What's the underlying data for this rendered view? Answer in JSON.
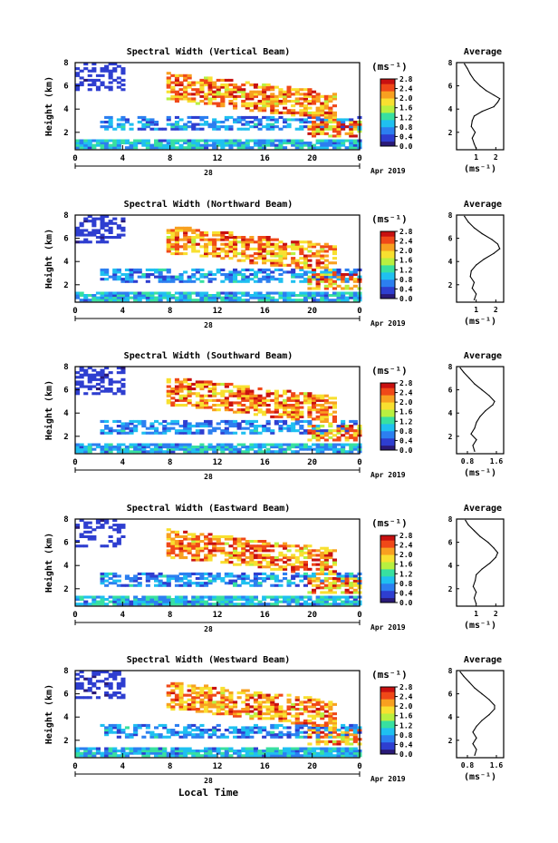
{
  "figure": {
    "xlabel_bottom": "Local Time",
    "date_label": "Apr 2019",
    "date_tick": "28",
    "ylabel": "Height (km)",
    "unit_label": "(ms⁻¹)",
    "avg_title": "Average"
  },
  "chart_data": [
    {
      "type": "heatmap",
      "title": "Spectral Width (Vertical Beam)",
      "xlabel": "",
      "ylabel": "Height (km)",
      "x_ticks": [
        "0",
        "4",
        "8",
        "12",
        "16",
        "20",
        "0"
      ],
      "y_ticks": [
        "2",
        "4",
        "6",
        "8"
      ],
      "xlim": [
        0,
        24
      ],
      "ylim": [
        0.5,
        8.0
      ],
      "colorbar": {
        "min": 0.0,
        "max": 2.8,
        "ticks": [
          "2.8",
          "2.4",
          "2.0",
          "1.6",
          "1.2",
          "0.8",
          "0.4",
          "0.0"
        ]
      },
      "average_profile": {
        "title": "Average",
        "x_ticks": [
          "1",
          "2"
        ],
        "xlim": [
          0,
          2.4
        ],
        "y_ticks": [
          "2",
          "4",
          "6",
          "8"
        ],
        "points": [
          [
            1.0,
            0.6
          ],
          [
            0.9,
            1.0
          ],
          [
            0.8,
            1.5
          ],
          [
            0.95,
            2.0
          ],
          [
            0.75,
            2.5
          ],
          [
            0.8,
            3.0
          ],
          [
            0.9,
            3.4
          ],
          [
            1.3,
            3.8
          ],
          [
            1.9,
            4.2
          ],
          [
            2.1,
            4.6
          ],
          [
            2.2,
            4.9
          ],
          [
            1.9,
            5.2
          ],
          [
            1.5,
            5.6
          ],
          [
            1.2,
            6.0
          ],
          [
            0.9,
            6.5
          ],
          [
            0.7,
            7.0
          ],
          [
            0.55,
            7.5
          ],
          [
            0.4,
            7.9
          ]
        ]
      }
    },
    {
      "type": "heatmap",
      "title": "Spectral Width (Northward Beam)",
      "xlabel": "",
      "ylabel": "Height (km)",
      "x_ticks": [
        "0",
        "4",
        "8",
        "12",
        "16",
        "20",
        "0"
      ],
      "y_ticks": [
        "2",
        "4",
        "6",
        "8"
      ],
      "xlim": [
        0,
        24
      ],
      "ylim": [
        0.5,
        8.0
      ],
      "colorbar": {
        "min": 0.0,
        "max": 2.8,
        "ticks": [
          "2.8",
          "2.4",
          "2.0",
          "1.6",
          "1.2",
          "0.8",
          "0.4",
          "0.0"
        ]
      },
      "average_profile": {
        "title": "Average",
        "x_ticks": [
          "1",
          "2"
        ],
        "xlim": [
          0,
          2.4
        ],
        "y_ticks": [
          "2",
          "4",
          "6",
          "8"
        ],
        "points": [
          [
            0.9,
            0.7
          ],
          [
            1.0,
            1.2
          ],
          [
            0.8,
            1.7
          ],
          [
            0.9,
            2.2
          ],
          [
            0.7,
            2.7
          ],
          [
            0.75,
            3.2
          ],
          [
            1.0,
            3.7
          ],
          [
            1.4,
            4.2
          ],
          [
            1.9,
            4.7
          ],
          [
            2.2,
            5.1
          ],
          [
            2.1,
            5.5
          ],
          [
            1.8,
            5.9
          ],
          [
            1.3,
            6.4
          ],
          [
            0.9,
            6.9
          ],
          [
            0.6,
            7.4
          ],
          [
            0.4,
            7.9
          ]
        ]
      }
    },
    {
      "type": "heatmap",
      "title": "Spectral Width (Southward Beam)",
      "xlabel": "",
      "ylabel": "Height (km)",
      "x_ticks": [
        "0",
        "4",
        "8",
        "12",
        "16",
        "20",
        "0"
      ],
      "y_ticks": [
        "2",
        "4",
        "6",
        "8"
      ],
      "xlim": [
        0,
        24
      ],
      "ylim": [
        0.5,
        8.0
      ],
      "colorbar": {
        "min": 0.0,
        "max": 2.8,
        "ticks": [
          "2.8",
          "2.4",
          "2.0",
          "1.6",
          "1.2",
          "0.8",
          "0.4",
          "0.0"
        ]
      },
      "average_profile": {
        "title": "Average",
        "x_ticks": [
          "0.8",
          "1.6"
        ],
        "xlim": [
          0.5,
          1.8
        ],
        "y_ticks": [
          "2",
          "4",
          "6",
          "8"
        ],
        "points": [
          [
            1.0,
            0.7
          ],
          [
            0.95,
            1.2
          ],
          [
            1.05,
            1.7
          ],
          [
            0.9,
            2.2
          ],
          [
            1.0,
            2.7
          ],
          [
            1.05,
            3.2
          ],
          [
            1.15,
            3.7
          ],
          [
            1.3,
            4.2
          ],
          [
            1.5,
            4.7
          ],
          [
            1.55,
            5.0
          ],
          [
            1.4,
            5.5
          ],
          [
            1.2,
            6.0
          ],
          [
            1.0,
            6.5
          ],
          [
            0.85,
            7.0
          ],
          [
            0.7,
            7.5
          ],
          [
            0.6,
            7.9
          ]
        ]
      }
    },
    {
      "type": "heatmap",
      "title": "Spectral Width (Eastward Beam)",
      "xlabel": "",
      "ylabel": "Height (km)",
      "x_ticks": [
        "0",
        "4",
        "8",
        "12",
        "16",
        "20",
        "0"
      ],
      "y_ticks": [
        "2",
        "4",
        "6",
        "8"
      ],
      "xlim": [
        0,
        24
      ],
      "ylim": [
        0.5,
        8.0
      ],
      "colorbar": {
        "min": 0.0,
        "max": 2.8,
        "ticks": [
          "2.8",
          "2.4",
          "2.0",
          "1.6",
          "1.2",
          "0.8",
          "0.4",
          "0.0"
        ]
      },
      "average_profile": {
        "title": "Average",
        "x_ticks": [
          "1",
          "2"
        ],
        "xlim": [
          0,
          2.4
        ],
        "y_ticks": [
          "2",
          "4",
          "6",
          "8"
        ],
        "points": [
          [
            1.0,
            0.7
          ],
          [
            0.9,
            1.2
          ],
          [
            1.0,
            1.7
          ],
          [
            0.85,
            2.2
          ],
          [
            0.95,
            2.7
          ],
          [
            1.0,
            3.2
          ],
          [
            1.3,
            3.7
          ],
          [
            1.7,
            4.2
          ],
          [
            2.0,
            4.7
          ],
          [
            2.1,
            5.1
          ],
          [
            1.9,
            5.5
          ],
          [
            1.6,
            6.0
          ],
          [
            1.2,
            6.5
          ],
          [
            0.9,
            7.0
          ],
          [
            0.6,
            7.5
          ],
          [
            0.45,
            7.9
          ]
        ]
      }
    },
    {
      "type": "heatmap",
      "title": "Spectral Width (Westward Beam)",
      "xlabel": "Local Time",
      "ylabel": "Height (km)",
      "x_ticks": [
        "0",
        "4",
        "8",
        "12",
        "16",
        "20",
        "0"
      ],
      "y_ticks": [
        "2",
        "4",
        "6",
        "8"
      ],
      "xlim": [
        0,
        24
      ],
      "ylim": [
        0.5,
        8.0
      ],
      "colorbar": {
        "min": 0.0,
        "max": 2.8,
        "ticks": [
          "2.8",
          "2.4",
          "2.0",
          "1.6",
          "1.2",
          "0.8",
          "0.4",
          "0.0"
        ]
      },
      "average_profile": {
        "title": "Average",
        "x_ticks": [
          "0.8",
          "1.6"
        ],
        "xlim": [
          0.5,
          1.8
        ],
        "y_ticks": [
          "2",
          "4",
          "6",
          "8"
        ],
        "points": [
          [
            1.0,
            0.7
          ],
          [
            1.05,
            1.2
          ],
          [
            0.95,
            1.7
          ],
          [
            1.05,
            2.2
          ],
          [
            0.95,
            2.7
          ],
          [
            1.05,
            3.2
          ],
          [
            1.2,
            3.7
          ],
          [
            1.4,
            4.2
          ],
          [
            1.55,
            4.7
          ],
          [
            1.55,
            5.0
          ],
          [
            1.4,
            5.5
          ],
          [
            1.2,
            6.0
          ],
          [
            1.0,
            6.5
          ],
          [
            0.85,
            7.0
          ],
          [
            0.7,
            7.5
          ],
          [
            0.6,
            7.9
          ]
        ]
      }
    }
  ]
}
